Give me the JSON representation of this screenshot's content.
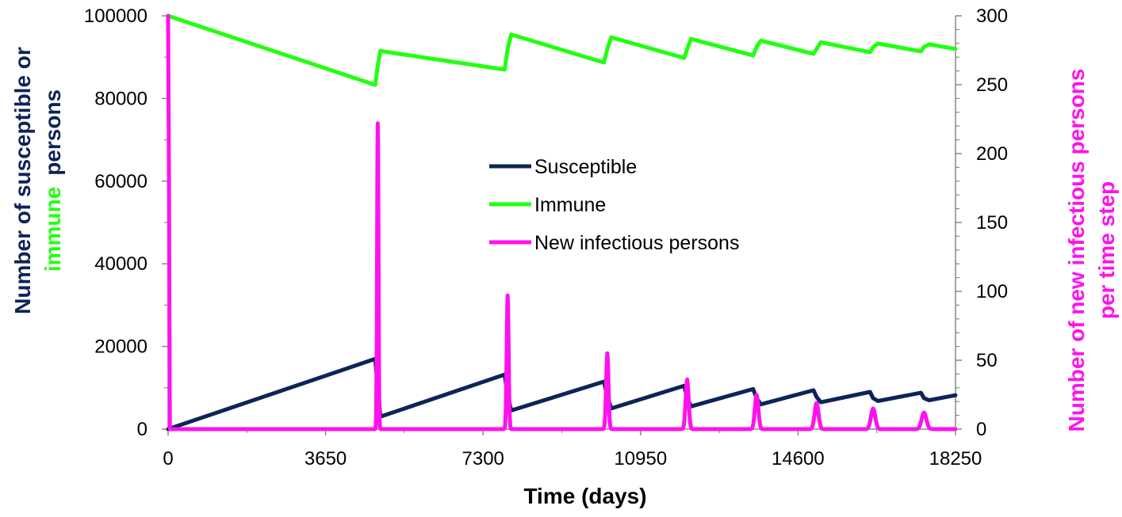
{
  "chart_data": {
    "type": "line",
    "xlabel": "Time (days)",
    "ylabel_left_parts": [
      "Number of susceptible or",
      "immune",
      "persons"
    ],
    "ylabel_right_lines": [
      "Number of new infectious persons",
      "per time step"
    ],
    "xticks": [
      0,
      3650,
      7300,
      10950,
      14600,
      18250
    ],
    "ylim_left": [
      0,
      100000
    ],
    "yticks_left": [
      0,
      20000,
      40000,
      60000,
      80000,
      100000
    ],
    "ylim_right": [
      0,
      300
    ],
    "yticks_right": [
      0,
      50,
      100,
      150,
      200,
      250,
      300
    ],
    "xlim": [
      0,
      18250
    ],
    "grid": false,
    "legend_position": "center",
    "colors": {
      "susceptible": "#0d2457",
      "immune": "#22ff11",
      "new_infectious": "#ff11ee",
      "left_title": "#0d2457",
      "immune_word": "#22ff11",
      "right_title": "#ff11ee"
    },
    "series": [
      {
        "name": "Susceptible",
        "axis": "left",
        "points": [
          [
            0,
            0
          ],
          [
            4800,
            17000
          ],
          [
            4860,
            10000
          ],
          [
            4920,
            3000
          ],
          [
            7800,
            13200
          ],
          [
            7870,
            8500
          ],
          [
            7950,
            4500
          ],
          [
            10100,
            11500
          ],
          [
            10180,
            8000
          ],
          [
            10270,
            5000
          ],
          [
            11960,
            10500
          ],
          [
            12030,
            7500
          ],
          [
            12120,
            5500
          ],
          [
            13560,
            9700
          ],
          [
            13640,
            7500
          ],
          [
            13740,
            6000
          ],
          [
            14960,
            9400
          ],
          [
            15030,
            7800
          ],
          [
            15130,
            6500
          ],
          [
            16270,
            9000
          ],
          [
            16340,
            7500
          ],
          [
            16450,
            6800
          ],
          [
            17450,
            8800
          ],
          [
            17520,
            7500
          ],
          [
            17640,
            7000
          ],
          [
            18250,
            8200
          ]
        ]
      },
      {
        "name": "Immune",
        "axis": "left",
        "points": [
          [
            0,
            100000
          ],
          [
            4800,
            83300
          ],
          [
            4860,
            88000
          ],
          [
            4920,
            91500
          ],
          [
            7800,
            87000
          ],
          [
            7870,
            92000
          ],
          [
            7950,
            95500
          ],
          [
            10100,
            88700
          ],
          [
            10180,
            92000
          ],
          [
            10270,
            94800
          ],
          [
            11960,
            89800
          ],
          [
            12030,
            92000
          ],
          [
            12120,
            94400
          ],
          [
            13560,
            90400
          ],
          [
            13640,
            92500
          ],
          [
            13740,
            94000
          ],
          [
            14960,
            90800
          ],
          [
            15030,
            92000
          ],
          [
            15130,
            93600
          ],
          [
            16270,
            91200
          ],
          [
            16340,
            92400
          ],
          [
            16450,
            93300
          ],
          [
            17450,
            91400
          ],
          [
            17520,
            92500
          ],
          [
            17640,
            93100
          ],
          [
            18250,
            92000
          ]
        ]
      },
      {
        "name": "New infectious persons",
        "axis": "right",
        "initial_spike": 300,
        "peaks": [
          {
            "t": 4860,
            "height": 222,
            "width": 32
          },
          {
            "t": 7870,
            "height": 97,
            "width": 45
          },
          {
            "t": 10180,
            "height": 55,
            "width": 55
          },
          {
            "t": 12030,
            "height": 36,
            "width": 70
          },
          {
            "t": 13640,
            "height": 25,
            "width": 80
          },
          {
            "t": 15030,
            "height": 19,
            "width": 90
          },
          {
            "t": 16340,
            "height": 15,
            "width": 100
          },
          {
            "t": 17520,
            "height": 12,
            "width": 110
          }
        ]
      }
    ]
  }
}
